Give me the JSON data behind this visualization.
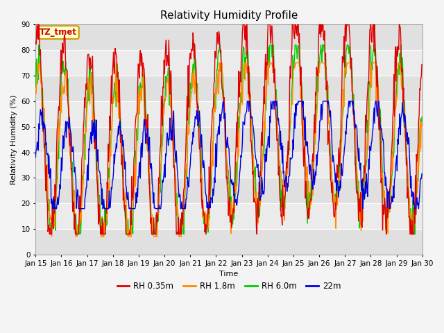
{
  "title": "Relativity Humidity Profile",
  "xlabel": "Time",
  "ylabel": "Relativity Humidity (%)",
  "ylim": [
    0,
    90
  ],
  "yticks": [
    0,
    10,
    20,
    30,
    40,
    50,
    60,
    70,
    80,
    90
  ],
  "n_days": 15,
  "n_per_day": 48,
  "colors": {
    "rh035": "#dd0000",
    "rh18": "#ff8c00",
    "rh60": "#00cc00",
    "rh22m": "#0000dd"
  },
  "legend_labels": [
    "RH 0.35m",
    "RH 1.8m",
    "RH 6.0m",
    "22m"
  ],
  "annotation_text": "TZ_tmet",
  "annotation_bg": "#ffffcc",
  "annotation_border": "#cc9900",
  "bg_color": "#f4f4f4",
  "band_colors": [
    "#e0e0e0",
    "#ebebeb"
  ],
  "grid_color": "#ffffff",
  "line_width": 1.0,
  "xtick_labels": [
    "Jan 15",
    "Jan 16",
    "Jan 17",
    "Jan 18",
    "Jan 19",
    "Jan 20",
    "Jan 21",
    "Jan 22",
    "Jan 23",
    "Jan 24",
    "Jan 25",
    "Jan 26",
    "Jan 27",
    "Jan 28",
    "Jan 29",
    "Jan 30"
  ],
  "title_fontsize": 11,
  "axis_fontsize": 8,
  "tick_fontsize": 7.5
}
